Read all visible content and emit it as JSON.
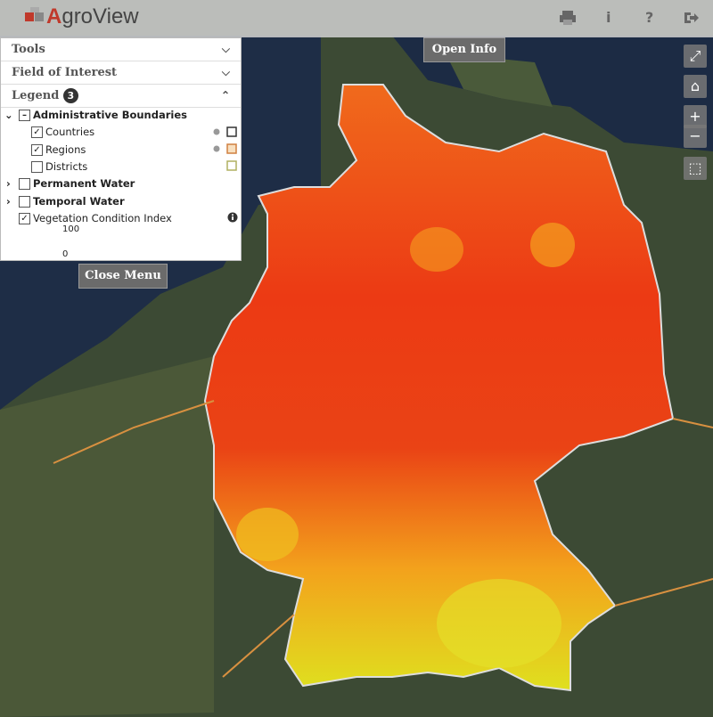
{
  "header": {
    "title": "AgroView",
    "icons": [
      "i",
      "?"
    ]
  },
  "menu": {
    "sections": [
      "Tools",
      "Field of Interest"
    ],
    "legend": {
      "title": "Legend",
      "count": "3",
      "layers": [
        {
          "label": "Administrative Boundaries",
          "children": [
            "Countries",
            "Regions",
            "Districts"
          ]
        },
        {
          "label": "Permanent Water"
        },
        {
          "label": "Temporal Water"
        },
        {
          "label": "Vegetation Condition Index",
          "scale": {
            "max": "100",
            "min": "0"
          }
        }
      ]
    }
  },
  "buttons": {
    "open_info": "Open Info",
    "close_menu": "Close Menu"
  },
  "map_controls": {
    "zoom_in": "+",
    "zoom_out": "−"
  }
}
